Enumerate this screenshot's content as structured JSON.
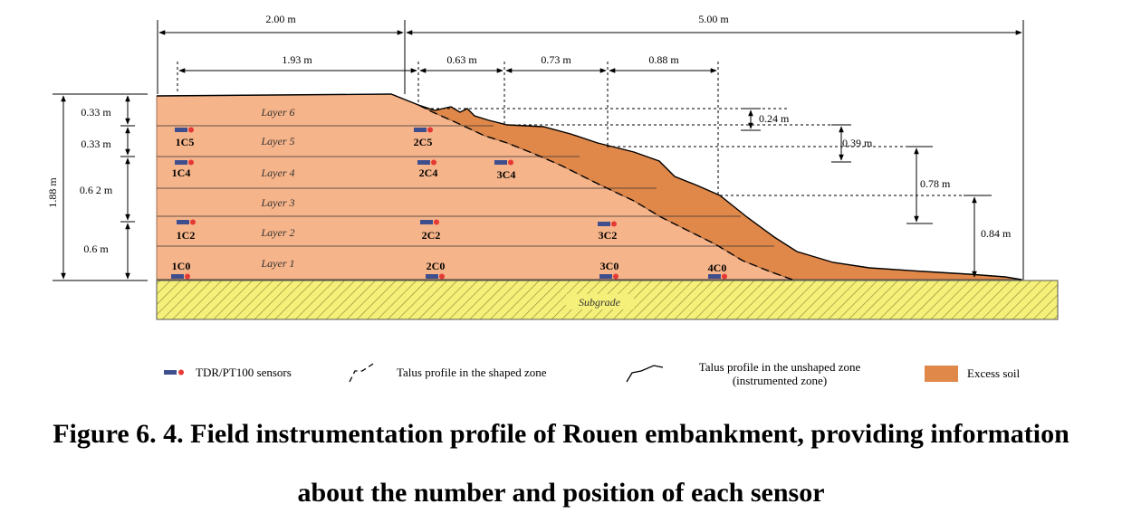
{
  "dimensions": {
    "top_left": "2.00 m",
    "top_right": "5.00 m",
    "d1": "1.93 m",
    "d2": "0.63 m",
    "d3": "0.73 m",
    "d4": "0.88 m",
    "total_height": "1.88 m",
    "h1": "0.33 m",
    "h2": "0.33 m",
    "h3": "0.6 2 m",
    "h4": "0.6 m",
    "excess1": "0.24 m",
    "excess2": "0.39 m",
    "excess3": "0.78 m",
    "excess4": "0.84 m"
  },
  "layers": [
    "Layer 6",
    "Layer 5",
    "Layer 4",
    "Layer 3",
    "Layer 2",
    "Layer 1"
  ],
  "subgrade": "Subgrade",
  "sensors": [
    "1C5",
    "2C5",
    "1C4",
    "2C4",
    "3C4",
    "1C2",
    "2C2",
    "3C2",
    "1C0",
    "2C0",
    "3C0",
    "4C0"
  ],
  "legend": {
    "sensors": "TDR/PT100 sensors",
    "shaped": "Talus profile in the shaped zone",
    "unshaped_line1": "Talus profile in the unshaped zone",
    "unshaped_line2": "(instrumented zone)",
    "excess": "Excess soil"
  },
  "colors": {
    "embankment": "#f6b48a",
    "excess_soil": "#e0874a",
    "subgrade": "#f5f07a",
    "sensor_bar": "#3f4f8e",
    "sensor_dot": "#e53935"
  },
  "caption": {
    "line1": "Figure 6. 4. Field instrumentation profile of Rouen embankment, providing information",
    "line2": "about the number and position of each sensor"
  }
}
